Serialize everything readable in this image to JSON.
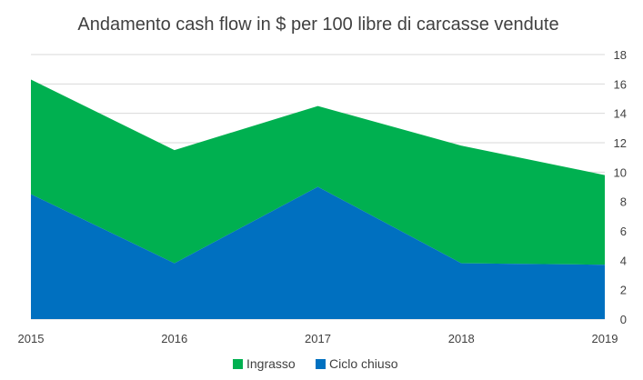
{
  "chart_data": {
    "type": "area",
    "title": "Andamento cash flow in $ per 100 libre di carcasse vendute",
    "x": [
      "2015",
      "2016",
      "2017",
      "2018",
      "2019"
    ],
    "series": [
      {
        "name": "Ingrasso",
        "values": [
          16.3,
          11.5,
          14.5,
          11.8,
          9.8
        ],
        "color": "#00b050"
      },
      {
        "name": "Ciclo chiuso",
        "values": [
          8.5,
          3.8,
          9.0,
          3.8,
          3.7
        ],
        "color": "#0070c0"
      }
    ],
    "y_axis": {
      "position": "right",
      "ylim": [
        0,
        18
      ],
      "ticks": [
        "0",
        "2",
        "4",
        "6",
        "8",
        "10",
        "12",
        "14",
        "16",
        "18"
      ]
    },
    "grid": true,
    "legend_position": "bottom"
  }
}
